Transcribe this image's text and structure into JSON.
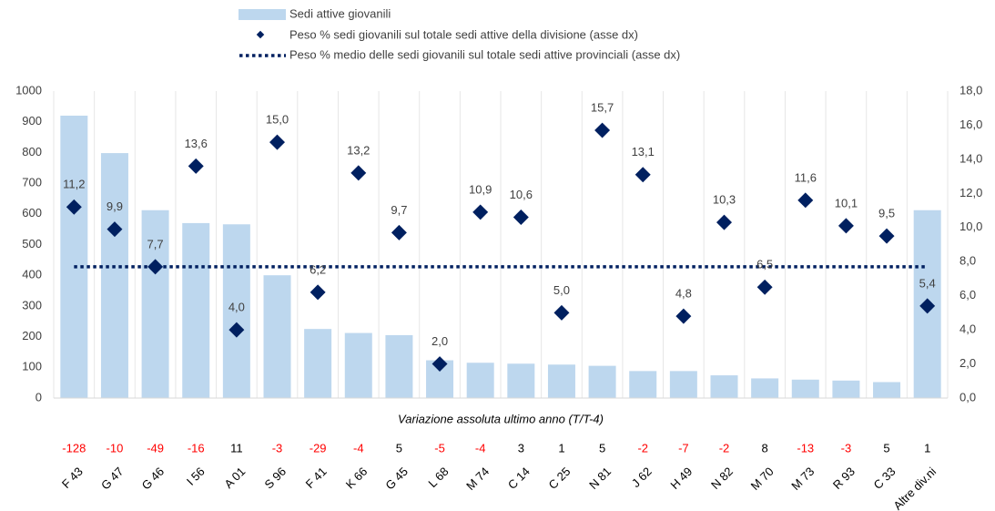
{
  "chart_data": {
    "type": "bar",
    "categories": [
      "F 43",
      "G 47",
      "G 46",
      "I 56",
      "A 01",
      "S 96",
      "F 41",
      "K 66",
      "G 45",
      "L 68",
      "M 74",
      "C 14",
      "C 25",
      "N 81",
      "J 62",
      "H 49",
      "N 82",
      "M 70",
      "M 73",
      "R 93",
      "C 33",
      "Altre div.ni"
    ],
    "series": [
      {
        "name": "Sedi attive giovanili",
        "type": "bar",
        "axis": "y",
        "color": "#bdd7ee",
        "values": [
          920,
          798,
          612,
          570,
          566,
          400,
          225,
          212,
          205,
          123,
          115,
          112,
          109,
          105,
          88,
          88,
          74,
          64,
          60,
          57,
          52,
          612
        ]
      },
      {
        "name": "Peso % sedi giovanili sul totale sedi attive della divisione (asse dx)",
        "type": "scatter",
        "axis": "y2",
        "color": "#002060",
        "values": [
          11.2,
          9.9,
          7.7,
          13.6,
          4.0,
          15.0,
          6.2,
          13.2,
          9.7,
          2.0,
          10.9,
          10.6,
          5.0,
          15.7,
          13.1,
          4.8,
          10.3,
          6.5,
          11.6,
          10.1,
          9.5,
          5.4
        ],
        "value_labels": [
          "11,2",
          "9,9",
          "7,7",
          "13,6",
          "4,0",
          "15,0",
          "6,2",
          "13,2",
          "9,7",
          "2,0",
          "10,9",
          "10,6",
          "5,0",
          "15,7",
          "13,1",
          "4,8",
          "10,3",
          "6,5",
          "11,6",
          "10,1",
          "9,5",
          "5,4"
        ]
      }
    ],
    "reference_line": {
      "name": "Peso % medio delle sedi giovanili sul totale sedi attive provinciali (asse dx)",
      "value": 7.7,
      "axis": "y2",
      "color": "#002060",
      "style": "dotted"
    },
    "variation": {
      "title": "Variazione assoluta ultimo anno (T/T-4)",
      "negative_color": "#ff0000",
      "positive_color": "#000000",
      "values": [
        -128,
        -10,
        -49,
        -16,
        11,
        -3,
        -29,
        -4,
        5,
        -5,
        -4,
        3,
        1,
        5,
        -2,
        -7,
        -2,
        8,
        -13,
        -3,
        5,
        1
      ]
    },
    "ylim": [
      0,
      1000
    ],
    "yticks": [
      0,
      100,
      200,
      300,
      400,
      500,
      600,
      700,
      800,
      900,
      1000
    ],
    "y2lim": [
      0,
      18
    ],
    "y2ticks": [
      {
        "value": 0,
        "label": "0,0"
      },
      {
        "value": 2,
        "label": "2,0"
      },
      {
        "value": 4,
        "label": "4,0"
      },
      {
        "value": 6,
        "label": "6,0"
      },
      {
        "value": 8,
        "label": "8,0"
      },
      {
        "value": 10,
        "label": "10,0"
      },
      {
        "value": 12,
        "label": "12,0"
      },
      {
        "value": 14,
        "label": "14,0"
      },
      {
        "value": 16,
        "label": "16,0"
      },
      {
        "value": 18,
        "label": "18,0"
      }
    ],
    "legend": "top"
  }
}
